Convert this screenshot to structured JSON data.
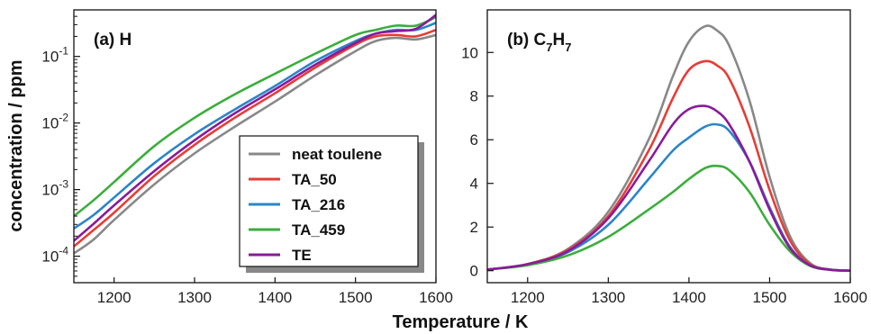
{
  "figure": {
    "xlabel": "Temperature / K",
    "ylabel": "concentration / ppm"
  },
  "chart_data": [
    {
      "type": "line",
      "panel": "a",
      "title_main": "(a) H",
      "title_sub": "",
      "xlabel": "Temperature / K",
      "ylabel": "concentration / ppm",
      "xlim": [
        1150,
        1600
      ],
      "ylim": [
        4e-05,
        0.5
      ],
      "yscale": "log",
      "x_ticks": [
        1200,
        1300,
        1400,
        1500,
        1600
      ],
      "x_tick_labels": [
        "1200",
        "1300",
        "1400",
        "1500",
        "1600"
      ],
      "y_ticks": [
        0.0001,
        0.001,
        0.01,
        0.1
      ],
      "y_tick_base": "10",
      "y_tick_exponents": [
        "-4",
        "-3",
        "-2",
        "-1"
      ],
      "legend_position": "lower-right",
      "legend_entries": [
        "neat toulene",
        "TA_50",
        "TA_216",
        "TA_459",
        "TE"
      ],
      "x": [
        1150,
        1175,
        1200,
        1250,
        1300,
        1350,
        1400,
        1450,
        1500,
        1525,
        1550,
        1575,
        1600
      ],
      "series": [
        {
          "name": "neat toulene",
          "color": "#888888",
          "values": [
            0.00011,
            0.00018,
            0.00035,
            0.0012,
            0.0035,
            0.0088,
            0.021,
            0.052,
            0.12,
            0.17,
            0.19,
            0.18,
            0.21
          ]
        },
        {
          "name": "TA_50",
          "color": "#e63d36",
          "values": [
            0.00014,
            0.00025,
            0.00045,
            0.0016,
            0.0047,
            0.012,
            0.028,
            0.068,
            0.15,
            0.2,
            0.21,
            0.2,
            0.25
          ]
        },
        {
          "name": "TA_216",
          "color": "#2b85c7",
          "values": [
            0.00026,
            0.00042,
            0.00076,
            0.0025,
            0.0068,
            0.016,
            0.036,
            0.085,
            0.17,
            0.22,
            0.25,
            0.25,
            0.32
          ]
        },
        {
          "name": "TA_459",
          "color": "#3cad3c",
          "values": [
            0.0004,
            0.0007,
            0.0013,
            0.0045,
            0.012,
            0.027,
            0.055,
            0.11,
            0.21,
            0.25,
            0.29,
            0.29,
            0.39
          ]
        },
        {
          "name": "TE",
          "color": "#8a1a9b",
          "values": [
            0.00017,
            0.00031,
            0.00058,
            0.0019,
            0.0055,
            0.014,
            0.032,
            0.075,
            0.16,
            0.22,
            0.24,
            0.26,
            0.42
          ]
        }
      ]
    },
    {
      "type": "line",
      "panel": "b",
      "title_main": "(b) C",
      "title_parts": [
        "(b) C",
        "7",
        "H",
        "7"
      ],
      "xlabel": "Temperature / K",
      "ylabel": "",
      "xlim": [
        1150,
        1600
      ],
      "ylim": [
        -0.55,
        11.95
      ],
      "yscale": "linear",
      "x_ticks": [
        1200,
        1300,
        1400,
        1500,
        1600
      ],
      "x_tick_labels": [
        "1200",
        "1300",
        "1400",
        "1500",
        "1600"
      ],
      "y_ticks": [
        0,
        2,
        4,
        6,
        8,
        10
      ],
      "y_tick_labels": [
        "0",
        "2",
        "4",
        "6",
        "8",
        "10"
      ],
      "x": [
        1150,
        1200,
        1250,
        1300,
        1350,
        1380,
        1400,
        1420,
        1435,
        1450,
        1475,
        1500,
        1525,
        1550,
        1575,
        1600
      ],
      "series": [
        {
          "name": "neat toulene",
          "color": "#888888",
          "values": [
            0.05,
            0.3,
            1.0,
            2.7,
            6.0,
            8.9,
            10.5,
            11.2,
            11.0,
            10.3,
            7.8,
            4.3,
            1.6,
            0.35,
            0.05,
            0.0
          ]
        },
        {
          "name": "TA_50",
          "color": "#e63d36",
          "values": [
            0.05,
            0.3,
            0.95,
            2.5,
            5.5,
            7.9,
            9.2,
            9.6,
            9.4,
            8.8,
            6.6,
            3.7,
            1.4,
            0.3,
            0.05,
            0.0
          ]
        },
        {
          "name": "TA_216",
          "color": "#2b85c7",
          "values": [
            0.05,
            0.28,
            0.85,
            2.1,
            4.2,
            5.5,
            6.1,
            6.6,
            6.7,
            6.4,
            5.0,
            2.9,
            1.1,
            0.25,
            0.05,
            0.0
          ]
        },
        {
          "name": "TA_459",
          "color": "#3cad3c",
          "values": [
            0.05,
            0.25,
            0.7,
            1.55,
            2.8,
            3.6,
            4.2,
            4.7,
            4.8,
            4.6,
            3.6,
            2.1,
            0.9,
            0.22,
            0.04,
            0.0
          ]
        },
        {
          "name": "TE",
          "color": "#8a1a9b",
          "values": [
            0.05,
            0.3,
            0.9,
            2.4,
            5.0,
            6.7,
            7.4,
            7.55,
            7.3,
            6.7,
            5.0,
            2.8,
            1.05,
            0.25,
            0.04,
            0.0
          ]
        }
      ]
    }
  ]
}
